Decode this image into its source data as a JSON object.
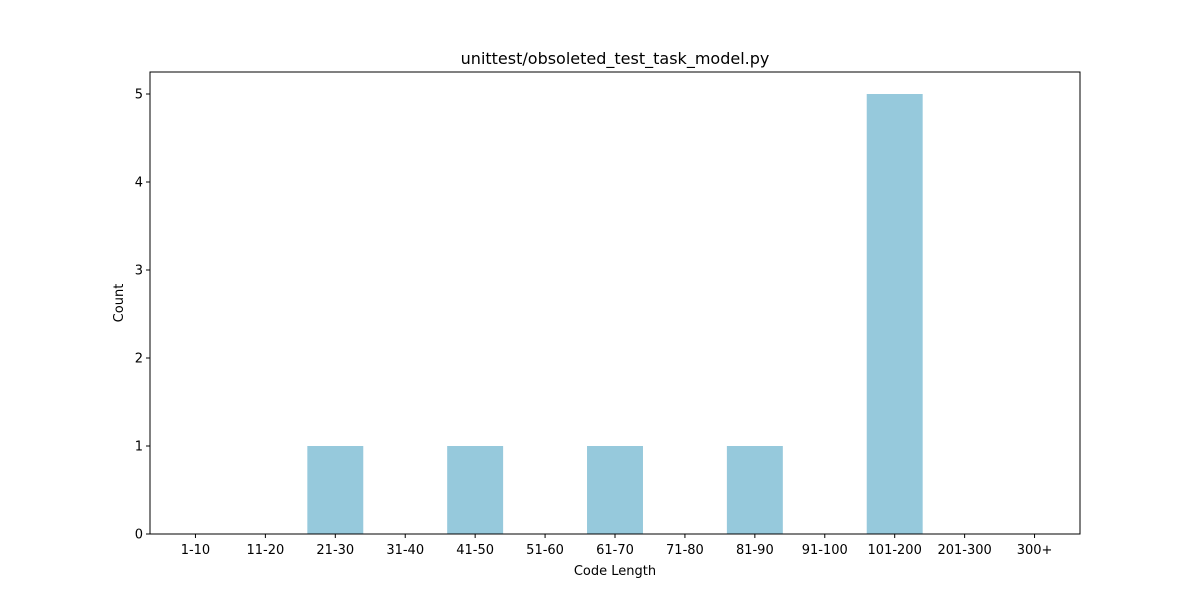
{
  "chart_data": {
    "type": "bar",
    "title": "unittest/obsoleted_test_task_model.py",
    "xlabel": "Code Length",
    "ylabel": "Count",
    "categories": [
      "1-10",
      "11-20",
      "21-30",
      "31-40",
      "41-50",
      "51-60",
      "61-70",
      "71-80",
      "81-90",
      "91-100",
      "101-200",
      "201-300",
      "300+"
    ],
    "values": [
      0,
      0,
      1,
      0,
      1,
      0,
      1,
      0,
      1,
      0,
      5,
      0,
      0
    ],
    "ylim": [
      0,
      5.25
    ],
    "yticks": [
      0,
      1,
      2,
      3,
      4,
      5
    ],
    "grid": false,
    "legend": "none",
    "bar_color": "#96c9dc"
  }
}
